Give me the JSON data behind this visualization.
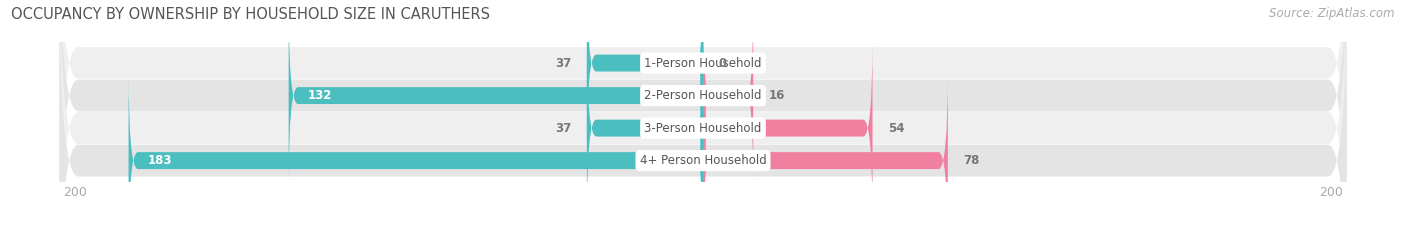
{
  "title": "OCCUPANCY BY OWNERSHIP BY HOUSEHOLD SIZE IN CARUTHERS",
  "source": "Source: ZipAtlas.com",
  "categories": [
    "1-Person Household",
    "2-Person Household",
    "3-Person Household",
    "4+ Person Household"
  ],
  "owner_values": [
    37,
    132,
    37,
    183
  ],
  "renter_values": [
    0,
    16,
    54,
    78
  ],
  "owner_color": "#4BBEC0",
  "renter_color": "#F07FA0",
  "row_bg_colors": [
    "#EFEFEF",
    "#E4E4E4",
    "#EFEFEF",
    "#E4E4E4"
  ],
  "axis_max": 200,
  "label_color_white": "#FFFFFF",
  "label_color_dark": "#777777",
  "center_label_color": "#555555",
  "axis_label_color": "#AAAAAA",
  "title_color": "#555555",
  "source_color": "#AAAAAA",
  "title_fontsize": 10.5,
  "label_fontsize": 8.5,
  "axis_fontsize": 9,
  "source_fontsize": 8.5,
  "legend_fontsize": 9
}
